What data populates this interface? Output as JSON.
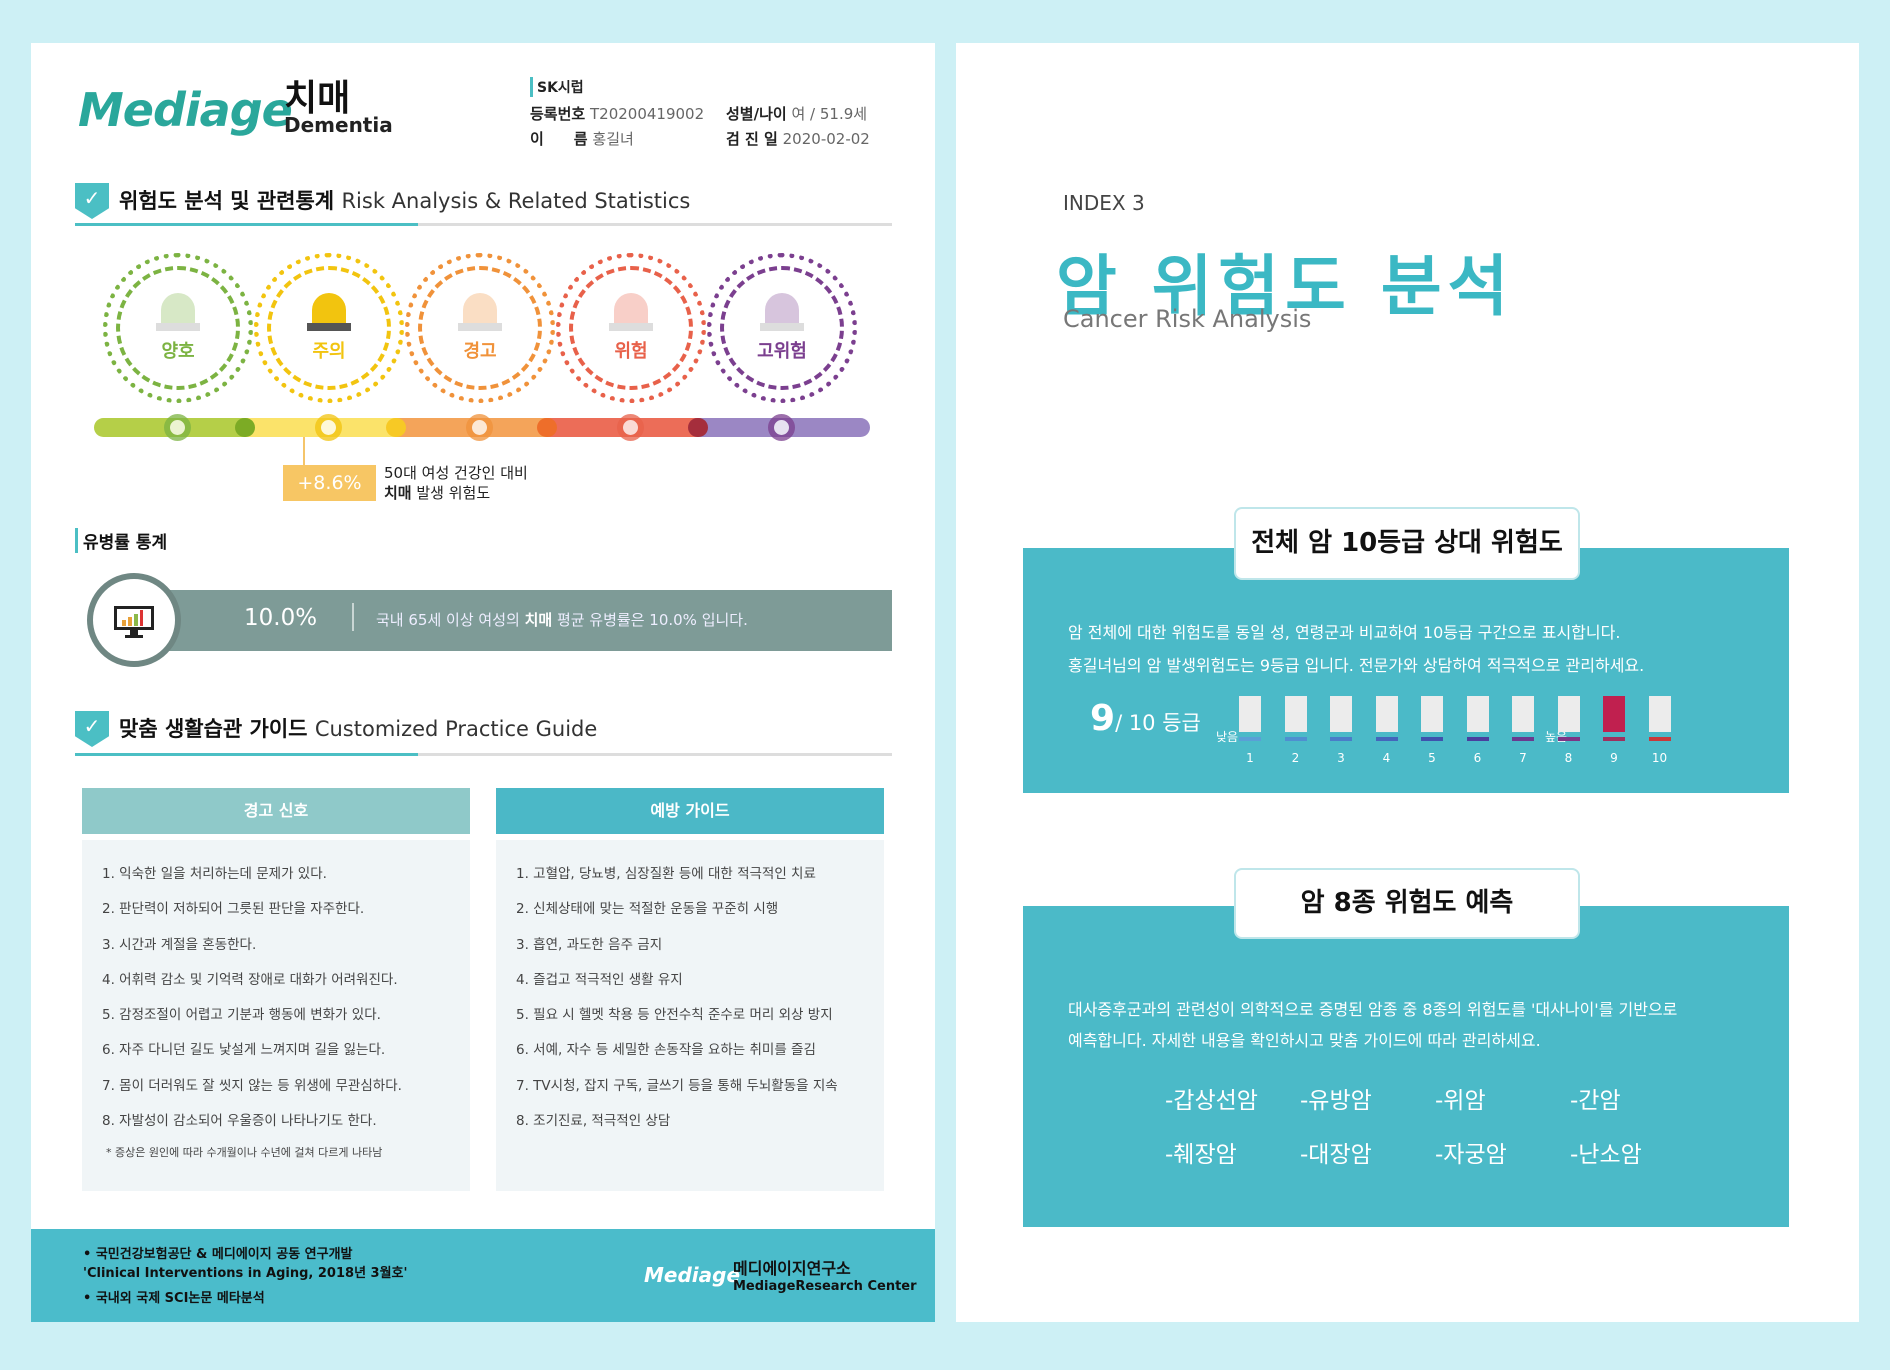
{
  "colors": {
    "background": "#cdf0f5",
    "teal": "#4bbac8",
    "accent_title": "#3bb8c4",
    "highlight_grade": "#c0204f"
  },
  "left": {
    "logo": "Mediage",
    "title_ko": "치매",
    "title_en": "Dementia",
    "info": {
      "company": "SK시럽",
      "reg_label": "등록번호",
      "reg_value": "T20200419002",
      "sex_age_label": "성별/나이",
      "sex_age_value": "여 / 51.9세",
      "name_label": "이　　름",
      "name_value": "홍길녀",
      "date_label": "검 진 일",
      "date_value": "2020-02-02"
    },
    "section1": {
      "ko": "위험도 분석 및 관련통계",
      "en": "Risk Analysis & Related Statistics"
    },
    "levels": [
      {
        "label": "양호",
        "color": "#7cb342",
        "active": false
      },
      {
        "label": "주의",
        "color": "#f2c40f",
        "active": true
      },
      {
        "label": "경고",
        "color": "#f0923a",
        "active": false
      },
      {
        "label": "위험",
        "color": "#e8614a",
        "active": false
      },
      {
        "label": "고위험",
        "color": "#7b3f8f",
        "active": false
      }
    ],
    "risk": {
      "value": "+8.6%",
      "line1": "50대 여성 건강인 대비",
      "line2_bold": "치매",
      "line2_rest": " 발생 위험도"
    },
    "prevalence": {
      "heading": "유병률 통계",
      "value": "10.0%",
      "text_pre": "국내 65세 이상 여성의 ",
      "text_bold": "치매",
      "text_post": " 평균 유병률은 10.0% 입니다.",
      "icon": "monitor-chart-icon"
    },
    "section2": {
      "ko": "맞춤 생활습관 가이드",
      "en": "Customized Practice Guide"
    },
    "warning": {
      "header": "경고 신호",
      "items": [
        "1. 익숙한 일을 처리하는데 문제가 있다.",
        "2. 판단력이 저하되어 그릇된 판단을 자주한다.",
        "3. 시간과 계절을 혼동한다.",
        "4. 어휘력 감소 및 기억력 장애로 대화가 어려워진다.",
        "5. 감정조절이 어렵고 기분과 행동에 변화가 있다.",
        "6. 자주 다니던 길도 낯설게 느껴지며 길을 잃는다.",
        "7. 몸이 더러워도 잘 씻지 않는 등 위생에 무관심하다.",
        "8. 자발성이 감소되어 우울증이 나타나기도 한다."
      ],
      "note": "* 증상은 원인에 따라 수개월이나 수년에 걸쳐 다르게 나타남"
    },
    "prevention": {
      "header": "예방 가이드",
      "items": [
        "1. 고혈압, 당뇨병, 심장질환 등에 대한 적극적인 치료",
        "2. 신체상태에 맞는 적절한 운동을 꾸준히 시행",
        "3. 흡연, 과도한 음주 금지",
        "4. 즐겁고 적극적인 생활 유지",
        "5. 필요 시 헬멧 착용 등 안전수칙 준수로 머리 외상 방지",
        "6. 서예, 자수 등 세밀한 손동작을 요하는 취미를 즐김",
        "7. TV시청, 잡지 구독, 글쓰기 등을 통해 두뇌활동을 지속",
        "8. 조기진료, 적극적인 상담"
      ]
    },
    "footer": {
      "line1": "• 국민건강보험공단 & 메디에이지 공동 연구개발",
      "line2": "'Clinical Interventions in Aging, 2018년 3월호'",
      "line3": "• 국내외 국제 SCI논문 메타분석",
      "logo": "Mediage",
      "org_ko": "메디에이지연구소",
      "org_en": "MediageResearch Center"
    }
  },
  "right": {
    "index": "INDEX 3",
    "title": "암 위험도 분석",
    "subtitle": "Cancer Risk Analysis",
    "box1": {
      "title": "전체 암 10등급 상대 위험도",
      "line1": "암 전체에 대한 위험도를 동일 성, 연령군과 비교하여 10등급 구간으로 표시합니다.",
      "line2": "홍길녀님의 암 발생위험도는 9등급 입니다. 전문가와 상담하여 적극적으로 관리하세요.",
      "grade": "9",
      "grade_suffix": "/ 10 등급",
      "low": "낮음",
      "high": "높음",
      "current_grade": 9,
      "grades": [
        "1",
        "2",
        "3",
        "4",
        "5",
        "6",
        "7",
        "8",
        "9",
        "10"
      ],
      "bar_colors": [
        "#5a9fd6",
        "#4f8fd0",
        "#4a7cc8",
        "#4466bb",
        "#3f52ad",
        "#4a3f9e",
        "#6a3a8f",
        "#7d3585",
        "#a0305e",
        "#c9393a"
      ]
    },
    "box2": {
      "title": "암 8종 위험도 예측",
      "line1": "대사증후군과의 관련성이 의학적으로 증명된 암종 중 8종의 위험도를 '대사나이'를 기반으로",
      "line2": "예측합니다. 자세한 내용을 확인하시고 맞춤 가이드에 따라 관리하세요.",
      "cancers": [
        "-갑상선암",
        "-유방암",
        "-위암",
        "-간암",
        "-췌장암",
        "-대장암",
        "-자궁암",
        "-난소암"
      ]
    }
  }
}
